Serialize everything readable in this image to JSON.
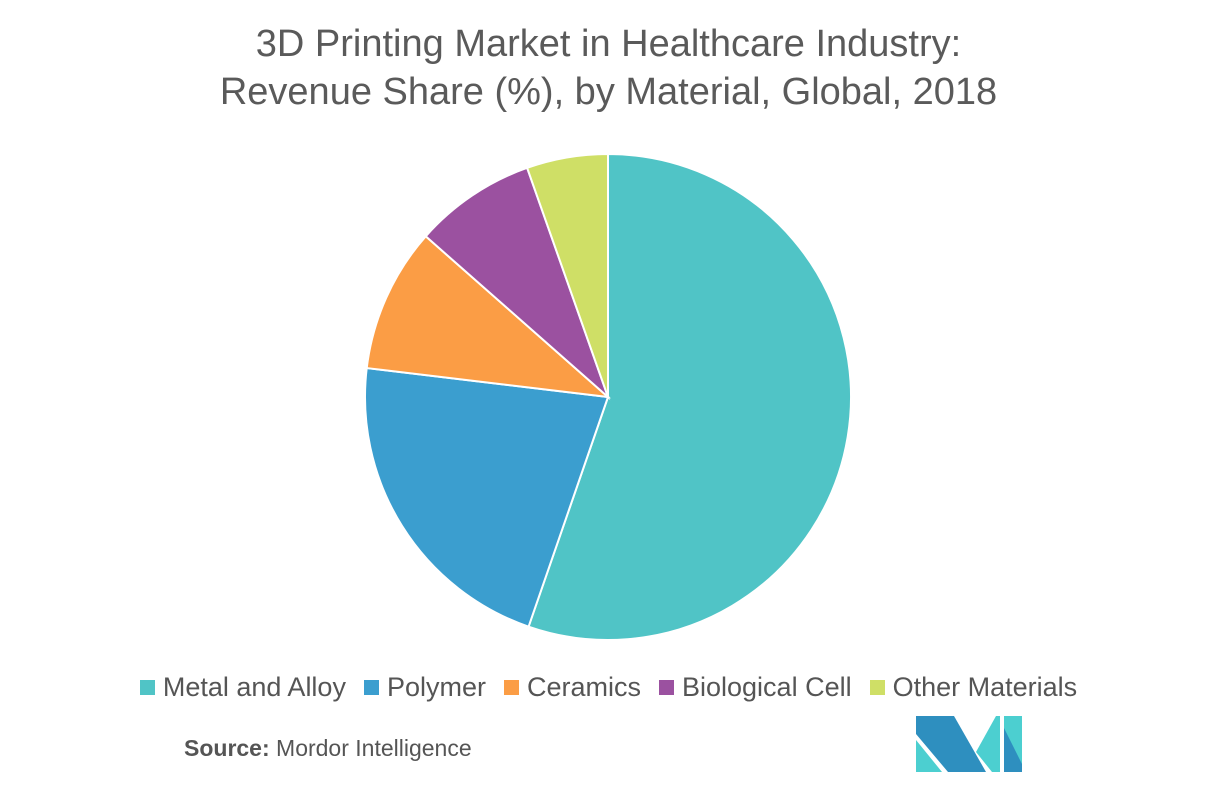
{
  "title_line1": "3D Printing Market in Healthcare Industry:",
  "title_line2": "Revenue Share (%), by Material, Global, 2018",
  "source_label": "Source:",
  "source_value": "Mordor Intelligence",
  "chart_data": {
    "type": "pie",
    "title": "3D Printing Market in Healthcare Industry: Revenue Share (%), by Material, Global, 2018",
    "categories": [
      "Metal and Alloy",
      "Polymer",
      "Ceramics",
      "Biological Cell",
      "Other Materials"
    ],
    "values": [
      55.3,
      21.6,
      9.6,
      8.1,
      5.4
    ],
    "colors": [
      "#50c4c6",
      "#3b9ecf",
      "#fb9d45",
      "#9b51a0",
      "#cfdf66"
    ],
    "legend_position": "bottom"
  }
}
